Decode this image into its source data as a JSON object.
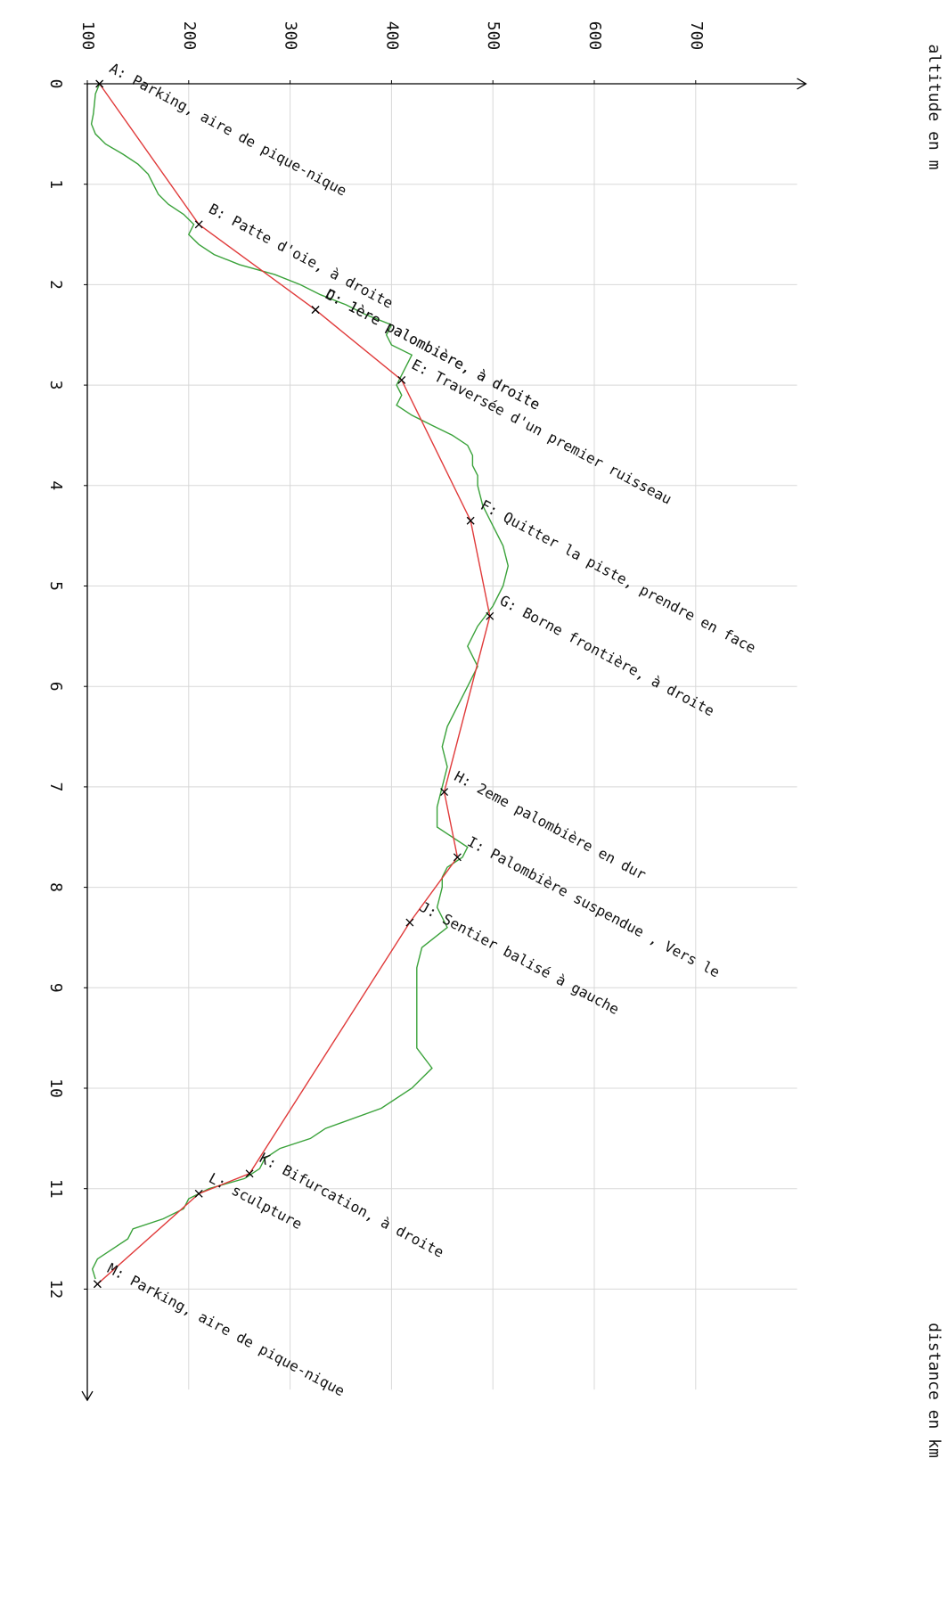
{
  "chart_data": {
    "type": "line",
    "orientation": "rotated-90-clockwise",
    "xlabel": "distance en km",
    "ylabel": "altitude en m",
    "xlim": [
      0,
      13
    ],
    "ylim": [
      100,
      800
    ],
    "x_ticks": [
      "0",
      "1",
      "2",
      "3",
      "4",
      "5",
      "6",
      "7",
      "8",
      "9",
      "10",
      "11",
      "12"
    ],
    "y_ticks": [
      "100",
      "200",
      "300",
      "400",
      "500",
      "600",
      "700"
    ],
    "grid": true,
    "colors": {
      "profile": "#3aa23a",
      "route": "#e03a3a",
      "grid": "#d8d8d8",
      "axis": "#000000",
      "text": "#111111"
    },
    "series": [
      {
        "key": "profile",
        "x": [
          0,
          0.1,
          0.2,
          0.3,
          0.4,
          0.5,
          0.6,
          0.7,
          0.8,
          0.9,
          1.0,
          1.1,
          1.2,
          1.3,
          1.4,
          1.5,
          1.6,
          1.7,
          1.8,
          1.9,
          2.0,
          2.1,
          2.2,
          2.3,
          2.4,
          2.5,
          2.6,
          2.7,
          2.8,
          2.9,
          3.0,
          3.1,
          3.2,
          3.3,
          3.4,
          3.5,
          3.6,
          3.7,
          3.8,
          3.9,
          4.0,
          4.2,
          4.4,
          4.6,
          4.8,
          5.0,
          5.2,
          5.4,
          5.6,
          5.8,
          6.0,
          6.2,
          6.4,
          6.6,
          6.8,
          7.0,
          7.2,
          7.4,
          7.5,
          7.6,
          7.7,
          7.8,
          7.9,
          8.0,
          8.2,
          8.4,
          8.6,
          8.8,
          9.0,
          9.2,
          9.4,
          9.6,
          9.8,
          10.0,
          10.2,
          10.4,
          10.5,
          10.6,
          10.7,
          10.8,
          10.9,
          11.0,
          11.1,
          11.2,
          11.3,
          11.4,
          11.5,
          11.6,
          11.7,
          11.8,
          11.9
        ],
        "values": [
          112,
          108,
          107,
          106,
          104,
          108,
          118,
          135,
          150,
          160,
          165,
          170,
          180,
          195,
          205,
          200,
          210,
          225,
          250,
          285,
          310,
          330,
          355,
          375,
          400,
          395,
          400,
          420,
          415,
          410,
          405,
          410,
          405,
          420,
          440,
          460,
          475,
          480,
          480,
          485,
          485,
          490,
          500,
          510,
          515,
          510,
          500,
          485,
          475,
          485,
          475,
          465,
          455,
          450,
          455,
          450,
          445,
          445,
          460,
          475,
          470,
          455,
          450,
          450,
          445,
          455,
          430,
          425,
          425,
          425,
          425,
          425,
          440,
          420,
          390,
          335,
          320,
          290,
          275,
          270,
          255,
          220,
          200,
          195,
          175,
          145,
          140,
          125,
          110,
          105,
          108
        ]
      },
      {
        "key": "route",
        "x": [
          0,
          1.4,
          2.25,
          2.95,
          4.35,
          5.3,
          7.05,
          7.7,
          8.35,
          10.85,
          11.05,
          11.95
        ],
        "values": [
          112,
          210,
          325,
          410,
          478,
          497,
          452,
          465,
          418,
          260,
          210,
          110
        ]
      }
    ],
    "annotations": [
      {
        "x": 0,
        "y": 112,
        "text": "A: Parking, aire de pique-nique"
      },
      {
        "x": 1.4,
        "y": 210,
        "text": "B: Patte d'oie, à droite"
      },
      {
        "x": 2.25,
        "y": 325,
        "text": "C: 1ère palombière, à droite"
      },
      {
        "x": 2.25,
        "y": 325,
        "text": "D: 1ère palombière, à droite"
      },
      {
        "x": 2.95,
        "y": 410,
        "text": "E: Traversée d'un premier ruisseau"
      },
      {
        "x": 4.35,
        "y": 478,
        "text": "F: Quitter la piste, prendre en face"
      },
      {
        "x": 5.3,
        "y": 497,
        "text": "G: Borne frontière, à droite"
      },
      {
        "x": 7.05,
        "y": 452,
        "text": "H: 2eme palombière en dur"
      },
      {
        "x": 7.7,
        "y": 465,
        "text": "I: Palombière suspendue , Vers le"
      },
      {
        "x": 8.35,
        "y": 418,
        "text": "J: Sentier balisé à gauche"
      },
      {
        "x": 10.85,
        "y": 260,
        "text": "K: Bifurcation, à droite"
      },
      {
        "x": 11.05,
        "y": 210,
        "text": "L: sculpture"
      },
      {
        "x": 11.95,
        "y": 110,
        "text": "M: Parking, aire de pique-nique"
      }
    ]
  }
}
